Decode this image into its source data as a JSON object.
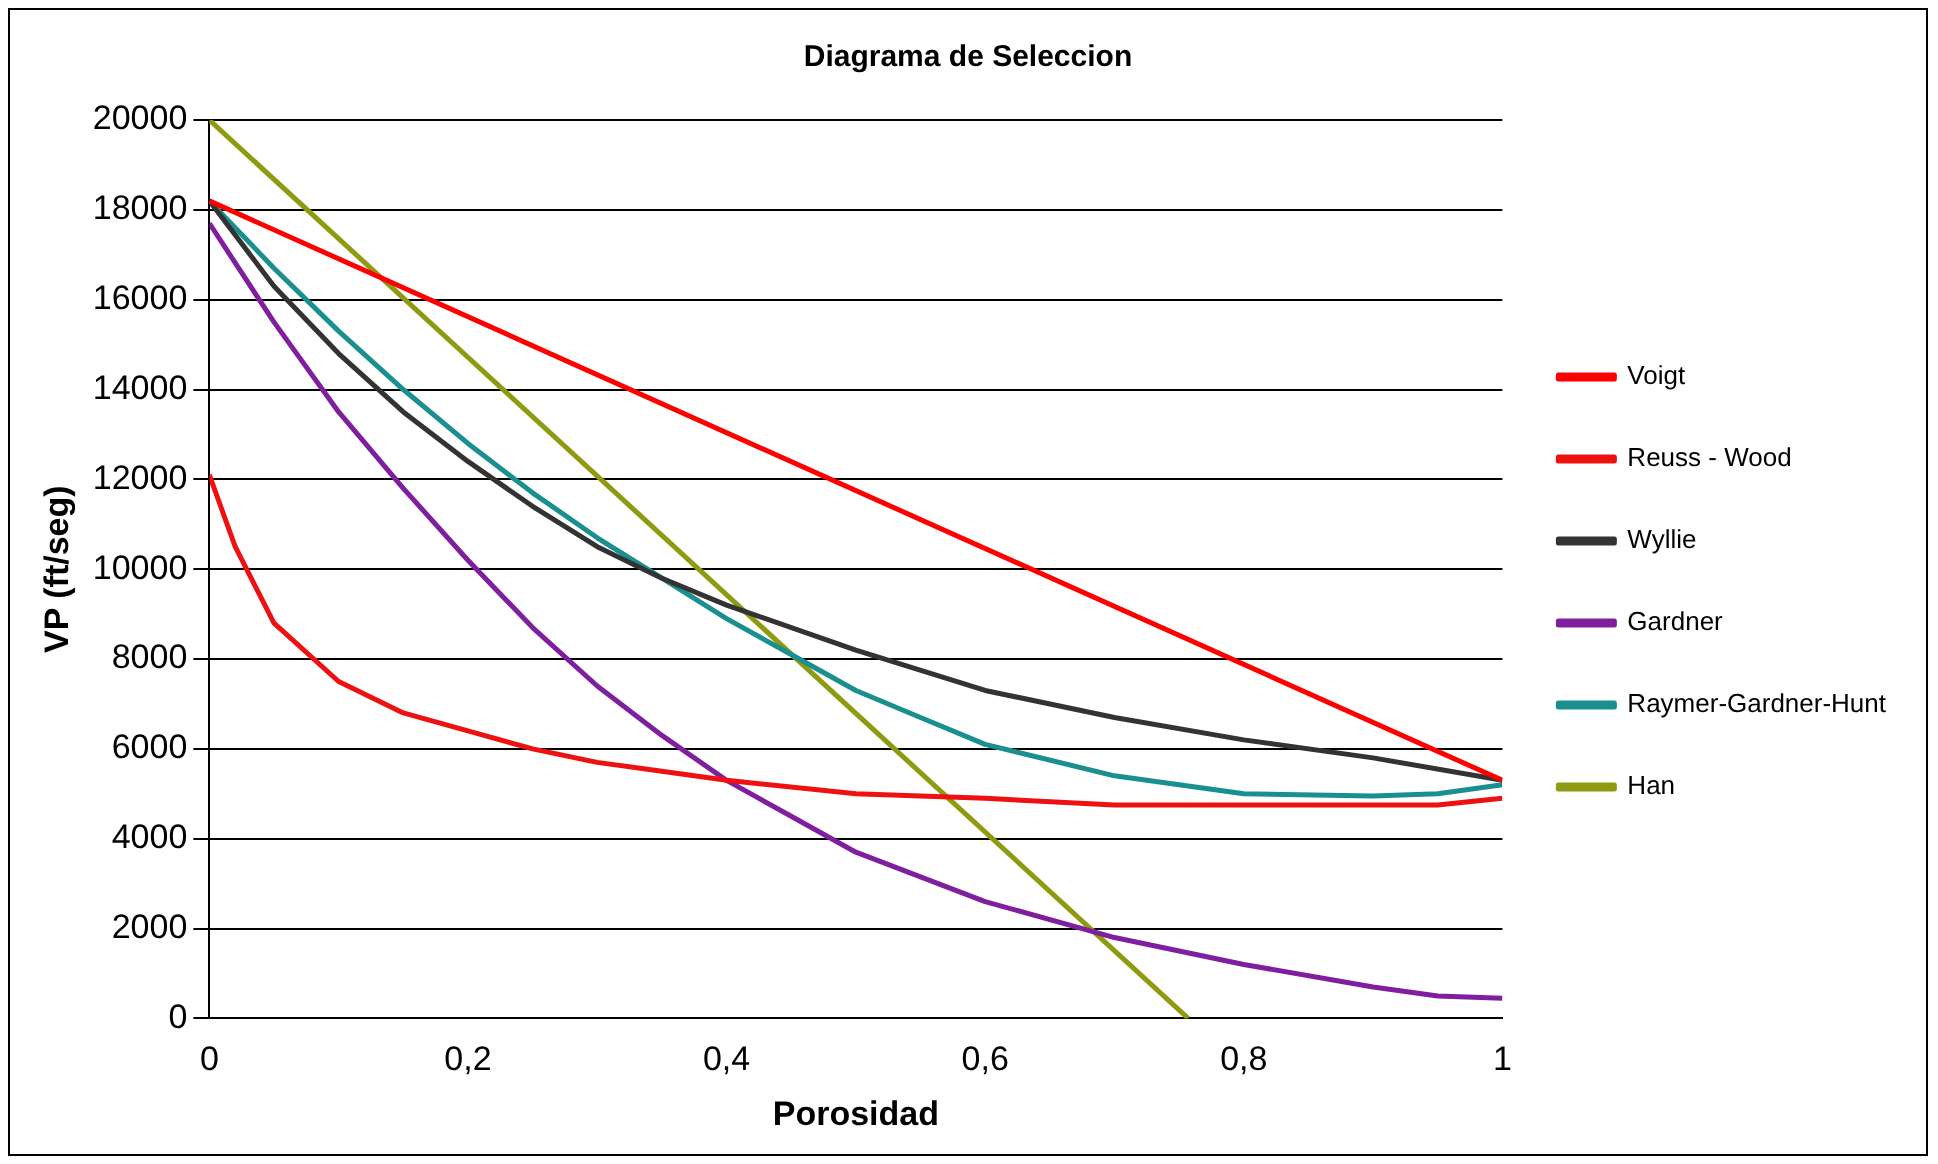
{
  "chart_data": {
    "type": "line",
    "title": "Diagrama de Seleccion",
    "xlabel": "Porosidad",
    "ylabel": "VP (ft/seg)",
    "xlim": [
      0,
      1
    ],
    "xticks": [
      0,
      {
        "value": 0.2,
        "label": "0,2"
      },
      {
        "value": 0.4,
        "label": "0,4"
      },
      {
        "value": 0.6,
        "label": "0,6"
      },
      {
        "value": 0.8,
        "label": "0,8"
      },
      1
    ],
    "ylim": [
      0,
      20000
    ],
    "yticks": [
      0,
      2000,
      4000,
      6000,
      8000,
      10000,
      12000,
      14000,
      16000,
      18000,
      20000
    ],
    "grid": "y",
    "legend": "right",
    "marker": "none",
    "line_style": "solid",
    "series": [
      {
        "name": "Voigt",
        "color": "#ff0000",
        "x": [
          0,
          1
        ],
        "values": [
          18200,
          5300
        ]
      },
      {
        "name": "Reuss - Wood",
        "color": "#ee1111",
        "x": [
          0,
          0.02,
          0.05,
          0.1,
          0.15,
          0.2,
          0.25,
          0.3,
          0.35,
          0.4,
          0.5,
          0.6,
          0.7,
          0.8,
          0.9,
          0.95,
          1
        ],
        "values": [
          12100,
          10500,
          8800,
          7500,
          6800,
          6400,
          6000,
          5700,
          5500,
          5300,
          5000,
          4900,
          4750,
          4750,
          4750,
          4750,
          4900
        ]
      },
      {
        "name": "Wyllie",
        "color": "#333333",
        "x": [
          0,
          0.05,
          0.1,
          0.15,
          0.2,
          0.25,
          0.3,
          0.35,
          0.4,
          0.5,
          0.6,
          0.7,
          0.8,
          0.9,
          1
        ],
        "values": [
          18200,
          16300,
          14800,
          13500,
          12400,
          11400,
          10500,
          9800,
          9200,
          8200,
          7300,
          6700,
          6200,
          5800,
          5300
        ]
      },
      {
        "name": "Gardner",
        "color": "#7f1f9f",
        "x": [
          0,
          0.05,
          0.1,
          0.15,
          0.2,
          0.25,
          0.3,
          0.35,
          0.4,
          0.45,
          0.5,
          0.6,
          0.7,
          0.8,
          0.9,
          0.95,
          1
        ],
        "values": [
          17700,
          15500,
          13500,
          11800,
          10200,
          8700,
          7400,
          6300,
          5300,
          4500,
          3700,
          2600,
          1800,
          1200,
          700,
          500,
          450
        ]
      },
      {
        "name": "Raymer-Gardner-Hunt",
        "color": "#1a8f8f",
        "x": [
          0,
          0.05,
          0.1,
          0.15,
          0.2,
          0.25,
          0.3,
          0.35,
          0.4,
          0.45,
          0.5,
          0.55,
          0.6,
          0.7,
          0.8,
          0.9,
          0.95,
          1
        ],
        "values": [
          18200,
          16700,
          15300,
          14000,
          12800,
          11700,
          10700,
          9800,
          8900,
          8100,
          7300,
          6700,
          6100,
          5400,
          5000,
          4950,
          5000,
          5200
        ]
      },
      {
        "name": "Han",
        "color": "#8f9a10",
        "x": [
          0,
          0.757
        ],
        "values": [
          20000,
          0
        ]
      }
    ]
  }
}
